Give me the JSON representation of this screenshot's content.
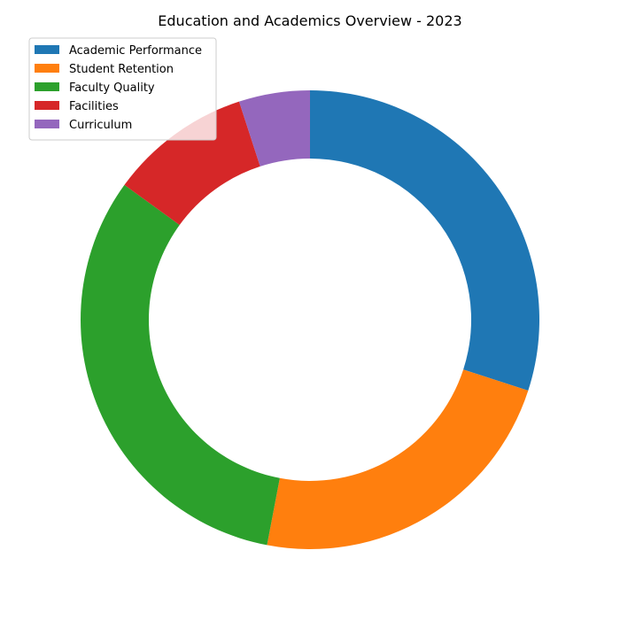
{
  "chart_data": {
    "type": "pie",
    "variant": "donut",
    "title": "Education and Academics Overview - 2023",
    "labels": [
      "Academic Performance",
      "Student Retention",
      "Faculty Quality",
      "Facilities",
      "Curriculum"
    ],
    "values": [
      30,
      23,
      32,
      10,
      5
    ],
    "colors": [
      "#1f77b4",
      "#ff7f0e",
      "#2ca02c",
      "#d62728",
      "#9467bd"
    ],
    "start_angle": "12 o'clock",
    "direction": "clockwise",
    "legend_position": "top-left"
  }
}
